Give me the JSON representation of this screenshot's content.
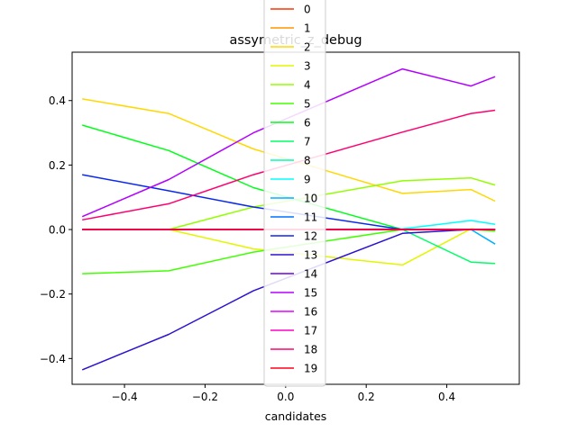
{
  "chart_data": {
    "type": "line",
    "title": "assymetric_z_debug",
    "xlabel": "candidates",
    "ylabel": "",
    "xlim": [
      -0.53,
      0.58
    ],
    "ylim": [
      -0.48,
      0.55
    ],
    "x": [
      -0.505,
      -0.29,
      -0.08,
      0.29,
      0.46,
      0.52
    ],
    "x_ticks": [
      {
        "value": -0.4,
        "label": "−0.4"
      },
      {
        "value": -0.2,
        "label": "−0.2"
      },
      {
        "value": 0.0,
        "label": "0.0"
      },
      {
        "value": 0.2,
        "label": "0.2"
      },
      {
        "value": 0.4,
        "label": "0.4"
      }
    ],
    "y_ticks": [
      {
        "value": -0.4,
        "label": "−0.4"
      },
      {
        "value": -0.2,
        "label": "−0.2"
      },
      {
        "value": 0.0,
        "label": "0.0"
      },
      {
        "value": 0.2,
        "label": "0.2"
      },
      {
        "value": 0.4,
        "label": "0.4"
      }
    ],
    "legend_position": "top-center, extending above the axes",
    "series": [
      {
        "name": "0",
        "color": "#ff3300",
        "values": [
          0,
          0,
          0,
          0,
          0,
          0
        ]
      },
      {
        "name": "1",
        "color": "#ff9300",
        "values": [
          0,
          0,
          0,
          0,
          0,
          0
        ]
      },
      {
        "name": "2",
        "color": "#ffd800",
        "values": [
          0.405,
          0.36,
          0.25,
          0.112,
          0.124,
          0.088
        ]
      },
      {
        "name": "3",
        "color": "#e4f500",
        "values": [
          0,
          0,
          -0.06,
          -0.11,
          0.002,
          -0.005
        ]
      },
      {
        "name": "4",
        "color": "#92ff00",
        "values": [
          0,
          0,
          0.07,
          0.151,
          0.16,
          0.138
        ]
      },
      {
        "name": "5",
        "color": "#42ff00",
        "values": [
          -0.137,
          -0.128,
          -0.07,
          0,
          0,
          -0.005
        ]
      },
      {
        "name": "6",
        "color": "#00ff18",
        "values": [
          0.324,
          0.245,
          0.13,
          0,
          0,
          0
        ]
      },
      {
        "name": "7",
        "color": "#00ff67",
        "values": [
          0,
          0,
          0,
          0,
          -0.101,
          -0.105
        ]
      },
      {
        "name": "8",
        "color": "#00ffb4",
        "values": [
          0,
          0,
          0,
          0,
          0,
          0
        ]
      },
      {
        "name": "9",
        "color": "#00ffff",
        "values": [
          0,
          0,
          0,
          0.002,
          0.028,
          0.016
        ]
      },
      {
        "name": "10",
        "color": "#00b0ff",
        "values": [
          0,
          0,
          0,
          0,
          0,
          -0.045
        ]
      },
      {
        "name": "11",
        "color": "#0070ff",
        "values": [
          0,
          0,
          0,
          0,
          0,
          0
        ]
      },
      {
        "name": "12",
        "color": "#0a28ee",
        "values": [
          0.17,
          0.12,
          0.07,
          0,
          0,
          0
        ]
      },
      {
        "name": "13",
        "color": "#2b12d0",
        "values": [
          -0.435,
          -0.325,
          -0.19,
          -0.012,
          0,
          0
        ]
      },
      {
        "name": "14",
        "color": "#7000e0",
        "values": [
          0,
          0,
          0,
          0,
          0,
          0
        ]
      },
      {
        "name": "15",
        "color": "#b200ff",
        "values": [
          0.04,
          0.155,
          0.3,
          0.498,
          0.445,
          0.474
        ]
      },
      {
        "name": "16",
        "color": "#e400ff",
        "values": [
          0,
          0,
          0,
          0,
          0,
          0
        ]
      },
      {
        "name": "17",
        "color": "#ff00c6",
        "values": [
          0,
          0,
          0,
          0,
          0,
          0
        ]
      },
      {
        "name": "18",
        "color": "#ff0070",
        "values": [
          0.03,
          0.08,
          0.17,
          0.302,
          0.36,
          0.37
        ]
      },
      {
        "name": "19",
        "color": "#ff0018",
        "values": [
          0,
          0,
          0,
          0,
          0,
          0
        ]
      }
    ]
  }
}
